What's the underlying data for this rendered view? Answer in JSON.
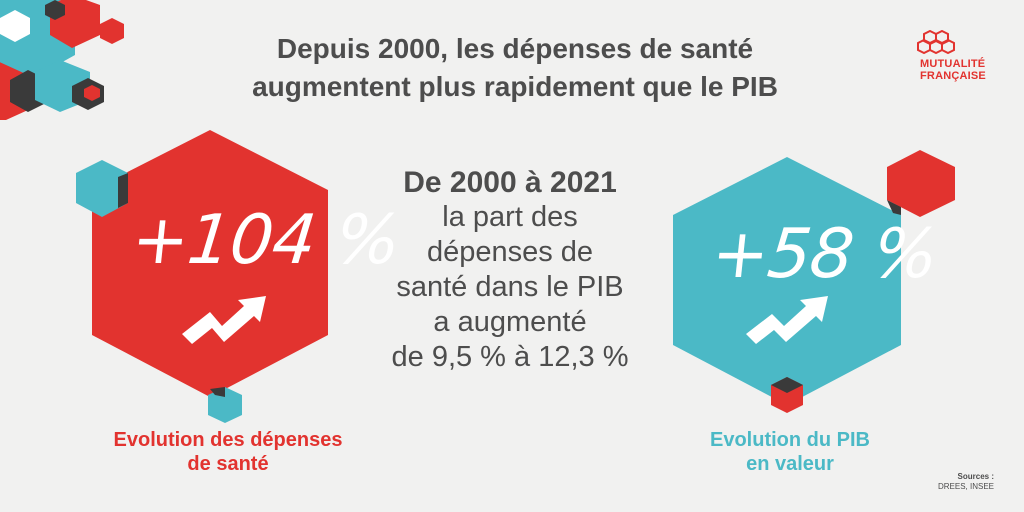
{
  "header": {
    "title_line1": "Depuis 2000, les dépenses de santé",
    "title_line2": "augmentent plus rapidement que le PIB"
  },
  "logo": {
    "line1": "MUTUALITÉ",
    "line2": "FRANÇAISE",
    "icon": "hexagon-cluster-logo-icon"
  },
  "left_stat": {
    "value": "+104 %",
    "caption_line1": "Evolution des dépenses",
    "caption_line2": "de santé",
    "icon": "trend-up-arrow-icon"
  },
  "center": {
    "heading": "De 2000 à 2021",
    "lines": [
      "la part des",
      "dépenses de",
      "santé dans le PIB",
      "a augmenté",
      "de 9,5 % à 12,3 %"
    ]
  },
  "right_stat": {
    "value": "+58 %",
    "caption_line1": "Evolution du PIB",
    "caption_line2": "en valeur",
    "icon": "trend-up-arrow-icon"
  },
  "sources": {
    "label": "Sources :",
    "text": "DREES, INSEE"
  },
  "colors": {
    "red": "#e2332f",
    "teal": "#4bb9c6",
    "dark": "#3a3a3a",
    "text": "#4d4d4d",
    "background": "#f1f1f0"
  }
}
